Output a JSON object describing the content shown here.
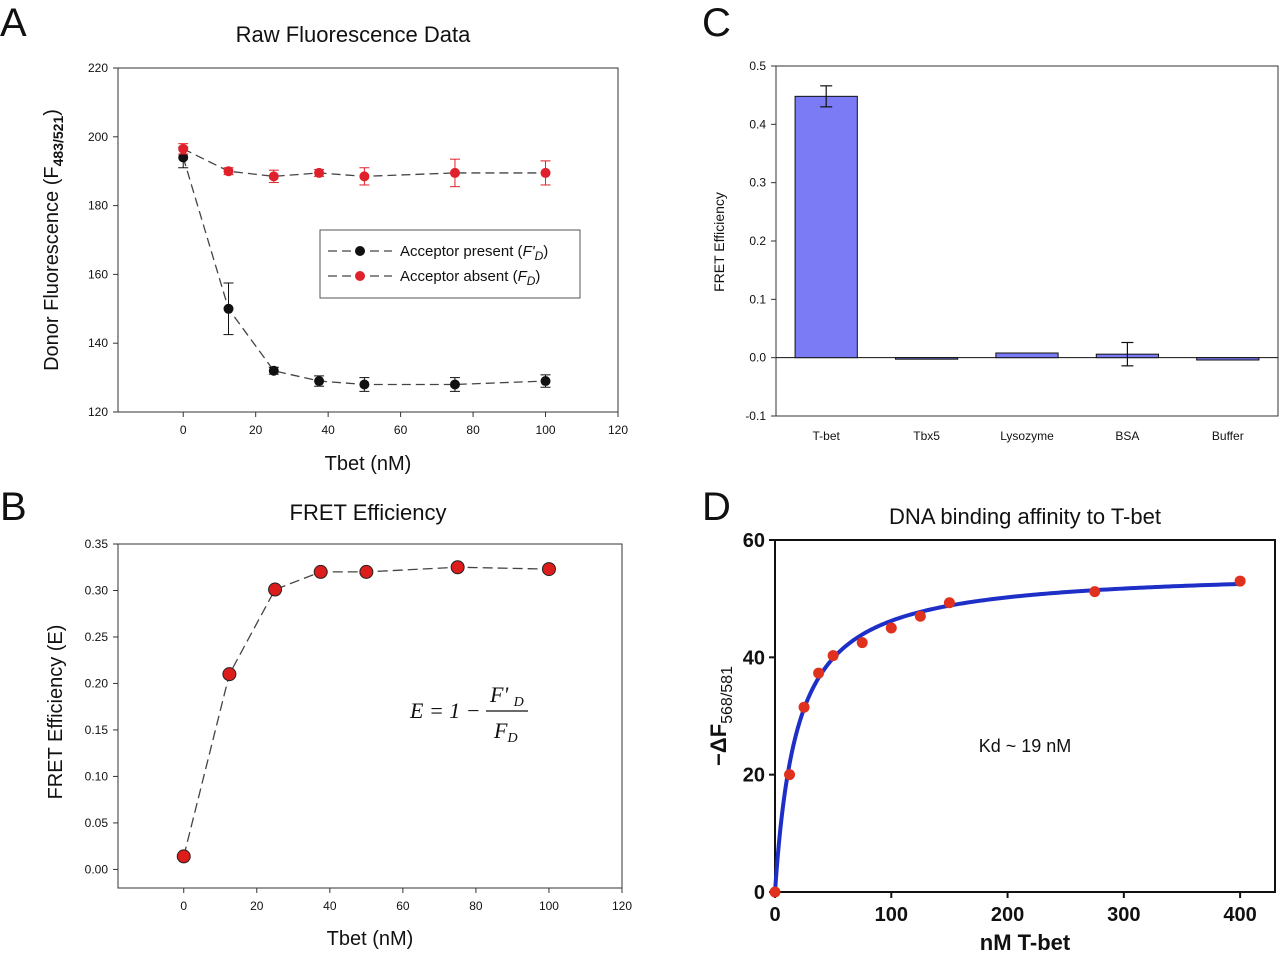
{
  "panels": {
    "a": "A",
    "b": "B",
    "c": "C",
    "d": "D"
  },
  "chart_data": [
    {
      "id": "a",
      "type": "line",
      "title": "Raw Fluorescence Data",
      "xlabel": "Tbet (nM)",
      "ylabel_main": "Donor Fluorescence (F",
      "ylabel_sub": "483/521",
      "ylabel_end": ")",
      "xlim": [
        -18,
        120
      ],
      "ylim": [
        120,
        220
      ],
      "xticks": [
        0,
        20,
        40,
        60,
        80,
        100,
        120
      ],
      "yticks": [
        120,
        140,
        160,
        180,
        200,
        220
      ],
      "x": [
        0,
        12.5,
        25,
        37.5,
        50,
        75,
        100
      ],
      "series": [
        {
          "legend_text": "Acceptor present (",
          "legend_var": "F'",
          "legend_sub": "D",
          "legend_end": ")",
          "color": "#111111",
          "values": [
            194,
            150,
            132,
            129,
            128,
            128,
            129
          ],
          "errors": [
            3,
            7.5,
            1,
            1.5,
            2,
            2,
            1.8
          ]
        },
        {
          "legend_text": "Acceptor absent (",
          "legend_var": "F",
          "legend_sub": "D",
          "legend_end": ")",
          "color": "#e0202a",
          "values": [
            196.5,
            190,
            188.5,
            189.5,
            188.5,
            189.5,
            189.5
          ],
          "errors": [
            1.5,
            1,
            1.8,
            1,
            2.5,
            4,
            3.5
          ]
        }
      ]
    },
    {
      "id": "b",
      "type": "line",
      "title": "FRET Efficiency",
      "xlabel": "Tbet (nM)",
      "ylabel": "FRET Efficiency (E)",
      "xlim": [
        -18,
        120
      ],
      "ylim": [
        -0.02,
        0.35
      ],
      "xticks": [
        0,
        20,
        40,
        60,
        80,
        100,
        120
      ],
      "yticks": [
        "0.00",
        "0.05",
        "0.10",
        "0.15",
        "0.20",
        "0.25",
        "0.30",
        "0.35"
      ],
      "x": [
        0,
        12.5,
        25,
        37.5,
        50,
        75,
        100
      ],
      "values": [
        0.014,
        0.21,
        0.301,
        0.32,
        0.32,
        0.325,
        0.323
      ],
      "point_color": "#dd1c1c",
      "formula": {
        "lhs": "E = 1 −",
        "num": "F' ",
        "num_sub": "D",
        "den": "F",
        "den_sub": "D"
      }
    },
    {
      "id": "c",
      "type": "bar",
      "title": "",
      "xlabel": "",
      "ylabel": "FRET Efficiency",
      "ylim": [
        -0.1,
        0.5
      ],
      "yticks": [
        "-0.1",
        "0.0",
        "0.1",
        "0.2",
        "0.3",
        "0.4",
        "0.5"
      ],
      "categories": [
        "T-bet",
        "Tbx5",
        "Lysozyme",
        "BSA",
        "Buffer"
      ],
      "values": [
        0.448,
        -0.002,
        0.008,
        0.006,
        -0.004
      ],
      "errors": [
        0.018,
        0,
        0,
        0.02,
        0
      ],
      "bar_color": "#7b7bf5"
    },
    {
      "id": "d",
      "type": "scatter",
      "title": "DNA binding affinity to T-bet",
      "xlabel": "nM T-bet",
      "ylabel_main": "−ΔF",
      "ylabel_sub": "568/581",
      "xlim": [
        0,
        430
      ],
      "ylim": [
        0,
        60
      ],
      "xticks": [
        0,
        100,
        200,
        300,
        400
      ],
      "yticks": [
        0,
        20,
        40,
        60
      ],
      "x": [
        0,
        12.5,
        25,
        37.5,
        50,
        75,
        100,
        125,
        150,
        275,
        400
      ],
      "values": [
        0,
        20,
        31.5,
        37.3,
        40.3,
        42.5,
        45,
        47,
        49.3,
        51.2,
        53
      ],
      "fit": {
        "bmax": 55,
        "kd": 19,
        "color": "#1e2fc8"
      },
      "point_color": "#e0301e",
      "annotation": "Kd ~ 19 nM"
    }
  ]
}
